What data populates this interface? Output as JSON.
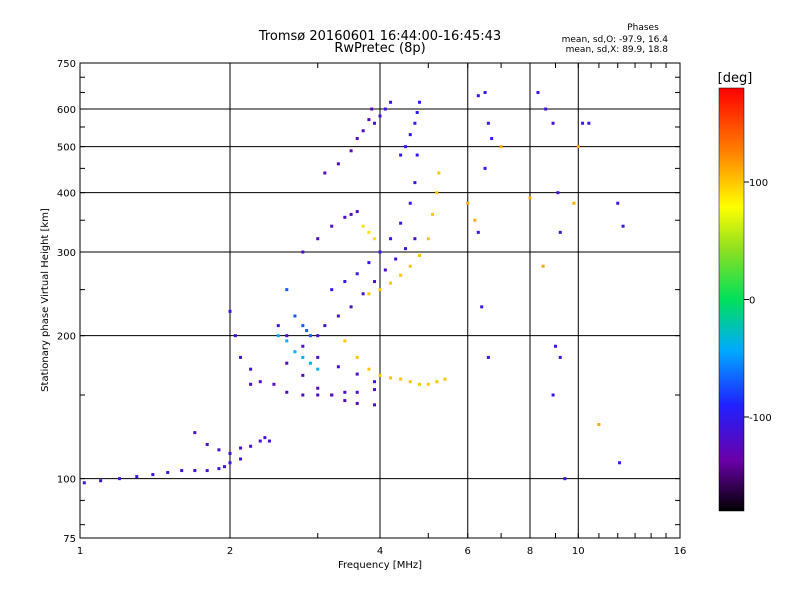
{
  "chart_data": {
    "type": "scatter",
    "title": "Tromsø 20160601 16:44:00-16:45:43",
    "subtitle": "RwPretec (8p)",
    "xlabel": "Frequency [MHz]",
    "ylabel": "Stationary phase Virtual Height [km]",
    "x_scale": "log",
    "y_scale": "log",
    "xlim": [
      1,
      16
    ],
    "ylim": [
      75,
      750
    ],
    "x_ticks": [
      1,
      2,
      4,
      6,
      8,
      10,
      16
    ],
    "x_tick_labels": [
      "1",
      "2",
      "4",
      "6",
      "8",
      "10",
      "16"
    ],
    "y_ticks": [
      75,
      100,
      200,
      300,
      400,
      500,
      600,
      750
    ],
    "y_tick_labels": [
      "75",
      "100",
      "200",
      "300",
      "400",
      "500",
      "600",
      "750"
    ],
    "grid": true,
    "phase_stats": {
      "heading": "Phases",
      "line_o": "mean, sd,O: -97.9, 16.4",
      "line_x": "mean, sd,X:  89.9, 18.8"
    },
    "colorbar": {
      "label": "[deg]",
      "range": [
        -180,
        180
      ],
      "ticks": [
        100,
        0,
        -100
      ],
      "tick_labels": [
        "100",
        "0",
        "-100"
      ],
      "colormap": "rainbow"
    },
    "series": [
      {
        "x": [
          1.02,
          1.1,
          1.2,
          1.3,
          1.4,
          1.5,
          1.6,
          1.7,
          1.8,
          1.9,
          1.95,
          2.0,
          2.1
        ],
        "y": [
          98,
          99,
          100,
          101,
          102,
          103,
          104,
          104,
          104,
          105,
          106,
          108,
          110
        ],
        "phase": -110
      },
      {
        "x": [
          1.7,
          1.8,
          1.9,
          2.0,
          2.1,
          2.2,
          2.3,
          2.35,
          2.4
        ],
        "y": [
          125,
          118,
          115,
          113,
          116,
          117,
          120,
          122,
          120
        ],
        "phase": -115
      },
      {
        "x": [
          2.0,
          2.05,
          2.1,
          2.2
        ],
        "y": [
          225,
          200,
          180,
          170
        ],
        "phase": -110
      },
      {
        "x": [
          2.2,
          2.3,
          2.45,
          2.6,
          2.8,
          3.0,
          3.2,
          3.4,
          3.6,
          3.9
        ],
        "y": [
          158,
          160,
          158,
          152,
          150,
          150,
          150,
          152,
          152,
          154
        ],
        "phase": -120
      },
      {
        "x": [
          2.5,
          2.6,
          2.8,
          3.0,
          3.3,
          3.6,
          3.9
        ],
        "y": [
          210,
          200,
          190,
          180,
          172,
          166,
          160
        ],
        "phase": -115
      },
      {
        "x": [
          2.6,
          2.8,
          3.0,
          3.2,
          3.4,
          3.6,
          3.9
        ],
        "y": [
          175,
          165,
          155,
          150,
          146,
          144,
          143
        ],
        "phase": -125
      },
      {
        "x": [
          2.5,
          2.6,
          2.7,
          2.8,
          2.9,
          3.0
        ],
        "y": [
          200,
          195,
          185,
          180,
          175,
          170
        ],
        "phase": -40
      },
      {
        "x": [
          2.6,
          2.7,
          2.8,
          2.85,
          2.9
        ],
        "y": [
          250,
          220,
          210,
          205,
          200
        ],
        "phase": -70
      },
      {
        "x": [
          3.0,
          3.1,
          3.3,
          3.5,
          3.7,
          3.9,
          4.1,
          4.3,
          4.5,
          4.7
        ],
        "y": [
          200,
          210,
          220,
          230,
          245,
          260,
          275,
          290,
          305,
          320
        ],
        "phase": -115
      },
      {
        "x": [
          3.2,
          3.4,
          3.6,
          3.8,
          4.0,
          4.2,
          4.4,
          4.6,
          4.7,
          4.75
        ],
        "y": [
          250,
          260,
          270,
          285,
          300,
          320,
          345,
          380,
          420,
          480
        ],
        "phase": -105
      },
      {
        "x": [
          4.4,
          4.5,
          4.6,
          4.7,
          4.75,
          4.8
        ],
        "y": [
          480,
          500,
          530,
          560,
          590,
          620
        ],
        "phase": -100
      },
      {
        "x": [
          3.4,
          3.6,
          3.8,
          4.0,
          4.2,
          4.4,
          4.6,
          4.8,
          5.0,
          5.2,
          5.4
        ],
        "y": [
          195,
          180,
          170,
          165,
          163,
          162,
          160,
          158,
          158,
          160,
          162
        ],
        "phase": 100
      },
      {
        "x": [
          3.8,
          4.0,
          4.2,
          4.4,
          4.6,
          4.8,
          5.0,
          5.1,
          5.2,
          5.25
        ],
        "y": [
          245,
          250,
          258,
          268,
          280,
          295,
          320,
          360,
          400,
          440
        ],
        "phase": 100
      },
      {
        "x": [
          3.7,
          3.8,
          3.9
        ],
        "y": [
          340,
          330,
          320
        ],
        "phase": 90
      },
      {
        "x": [
          3.1,
          3.3,
          3.5,
          3.6,
          3.7,
          3.8,
          3.85
        ],
        "y": [
          440,
          460,
          490,
          520,
          540,
          570,
          600
        ],
        "phase": -125
      },
      {
        "x": [
          2.8,
          3.0,
          3.2,
          3.4,
          3.5,
          3.6
        ],
        "y": [
          300,
          320,
          340,
          355,
          360,
          365
        ],
        "phase": -120
      },
      {
        "x": [
          3.9,
          4.0,
          4.1,
          4.2
        ],
        "y": [
          560,
          580,
          600,
          620
        ],
        "phase": -110
      },
      {
        "x": [
          6.3,
          6.5,
          6.6,
          6.7,
          6.5,
          6.3,
          6.4,
          6.6
        ],
        "y": [
          640,
          650,
          560,
          520,
          450,
          330,
          230,
          180
        ],
        "phase": -100
      },
      {
        "x": [
          8.3,
          8.6,
          8.9,
          9.1,
          9.2,
          9.0,
          9.2,
          8.9,
          9.4
        ],
        "y": [
          650,
          600,
          560,
          400,
          330,
          190,
          180,
          150,
          100
        ],
        "phase": -110
      },
      {
        "x": [
          10.2,
          10.5,
          12.0,
          12.3,
          12.1
        ],
        "y": [
          560,
          560,
          380,
          340,
          108
        ],
        "phase": -105
      },
      {
        "x": [
          6.0,
          6.2,
          7.0,
          8.0,
          8.5,
          9.8,
          10.0,
          11.0
        ],
        "y": [
          380,
          350,
          500,
          390,
          280,
          380,
          500,
          130
        ],
        "phase": 110
      }
    ]
  }
}
